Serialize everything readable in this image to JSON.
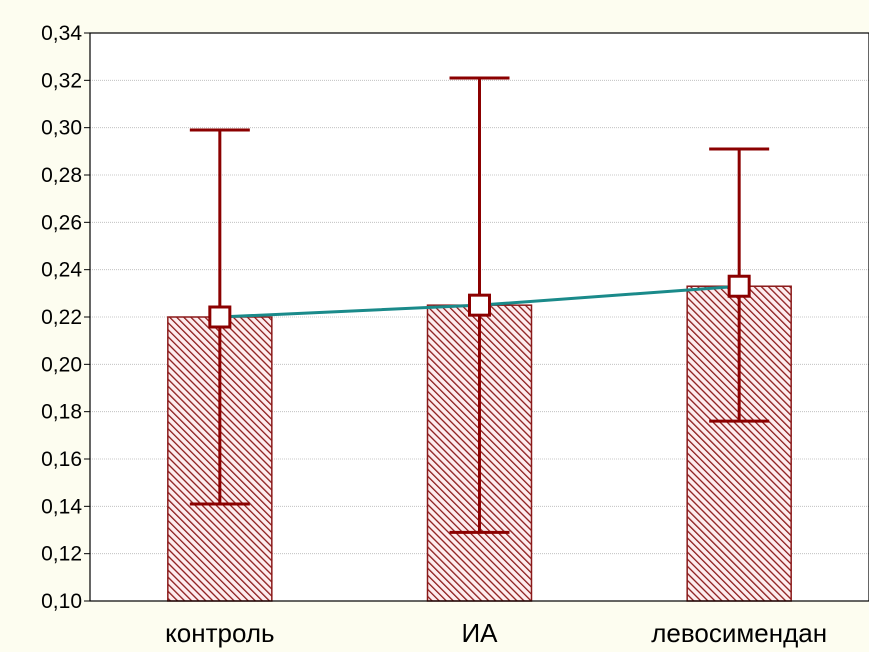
{
  "chart_data": {
    "type": "bar",
    "title": "",
    "xlabel": "",
    "ylabel": "",
    "ylim": [
      0.1,
      0.34
    ],
    "yticks": [
      "0,10",
      "0,12",
      "0,14",
      "0,16",
      "0,18",
      "0,20",
      "0,22",
      "0,24",
      "0,26",
      "0,28",
      "0,30",
      "0,32",
      "0,34"
    ],
    "ytick_values": [
      0.1,
      0.12,
      0.14,
      0.16,
      0.18,
      0.2,
      0.22,
      0.24,
      0.26,
      0.28,
      0.3,
      0.32,
      0.34
    ],
    "grid": true,
    "categories": [
      "контроль",
      "ИА",
      "левосимендан"
    ],
    "values": [
      0.22,
      0.225,
      0.233
    ],
    "error_low": [
      0.141,
      0.129,
      0.176
    ],
    "error_high": [
      0.299,
      0.321,
      0.291
    ],
    "line_overlay": true,
    "colors": {
      "bar_fill": "#fdecee",
      "bar_hatch": "#8b1a1a",
      "bar_stroke": "#8b1a1a",
      "error_bar": "#8b0000",
      "line": "#1a8a8a",
      "marker_stroke": "#8b0000",
      "marker_fill": "#ffffff",
      "plot_bg": "#ffffff",
      "page_bg": "#fdfdf0",
      "grid": "#b8b8b8"
    }
  }
}
